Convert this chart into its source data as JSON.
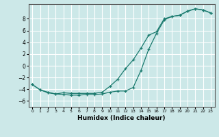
{
  "xlabel": "Humidex (Indice chaleur)",
  "background_color": "#cce8e8",
  "grid_color": "#ffffff",
  "line_color": "#1a7a6e",
  "marker": "+",
  "xlim": [
    -0.5,
    23.5
  ],
  "ylim": [
    -7.0,
    10.5
  ],
  "xticks": [
    0,
    1,
    2,
    3,
    4,
    5,
    6,
    7,
    8,
    9,
    10,
    11,
    12,
    13,
    14,
    15,
    16,
    17,
    18,
    19,
    20,
    21,
    22,
    23
  ],
  "yticks": [
    -6,
    -4,
    -2,
    0,
    2,
    4,
    6,
    8
  ],
  "upper_x": [
    0,
    1,
    2,
    3,
    4,
    5,
    6,
    7,
    8,
    9,
    10,
    11,
    12,
    13,
    14,
    15,
    16,
    17,
    18,
    19,
    20,
    21,
    22,
    23
  ],
  "upper_y": [
    -3.2,
    -4.1,
    -4.5,
    -4.8,
    -4.6,
    -4.7,
    -4.7,
    -4.7,
    -4.7,
    -4.5,
    -3.5,
    -2.3,
    -0.5,
    1.0,
    3.0,
    5.2,
    5.8,
    8.0,
    8.4,
    8.6,
    9.3,
    9.7,
    9.5,
    9.0
  ],
  "lower_x": [
    0,
    1,
    2,
    3,
    4,
    5,
    6,
    7,
    8,
    9,
    10,
    11,
    12,
    13,
    14,
    15,
    16,
    17,
    18,
    19,
    20,
    21,
    22,
    23
  ],
  "lower_y": [
    -3.2,
    -4.1,
    -4.6,
    -4.8,
    -4.9,
    -5.0,
    -5.0,
    -4.9,
    -4.9,
    -4.8,
    -4.5,
    -4.3,
    -4.3,
    -3.7,
    -0.8,
    2.8,
    5.5,
    7.8,
    8.4,
    8.6,
    9.3,
    9.7,
    9.5,
    9.0
  ]
}
